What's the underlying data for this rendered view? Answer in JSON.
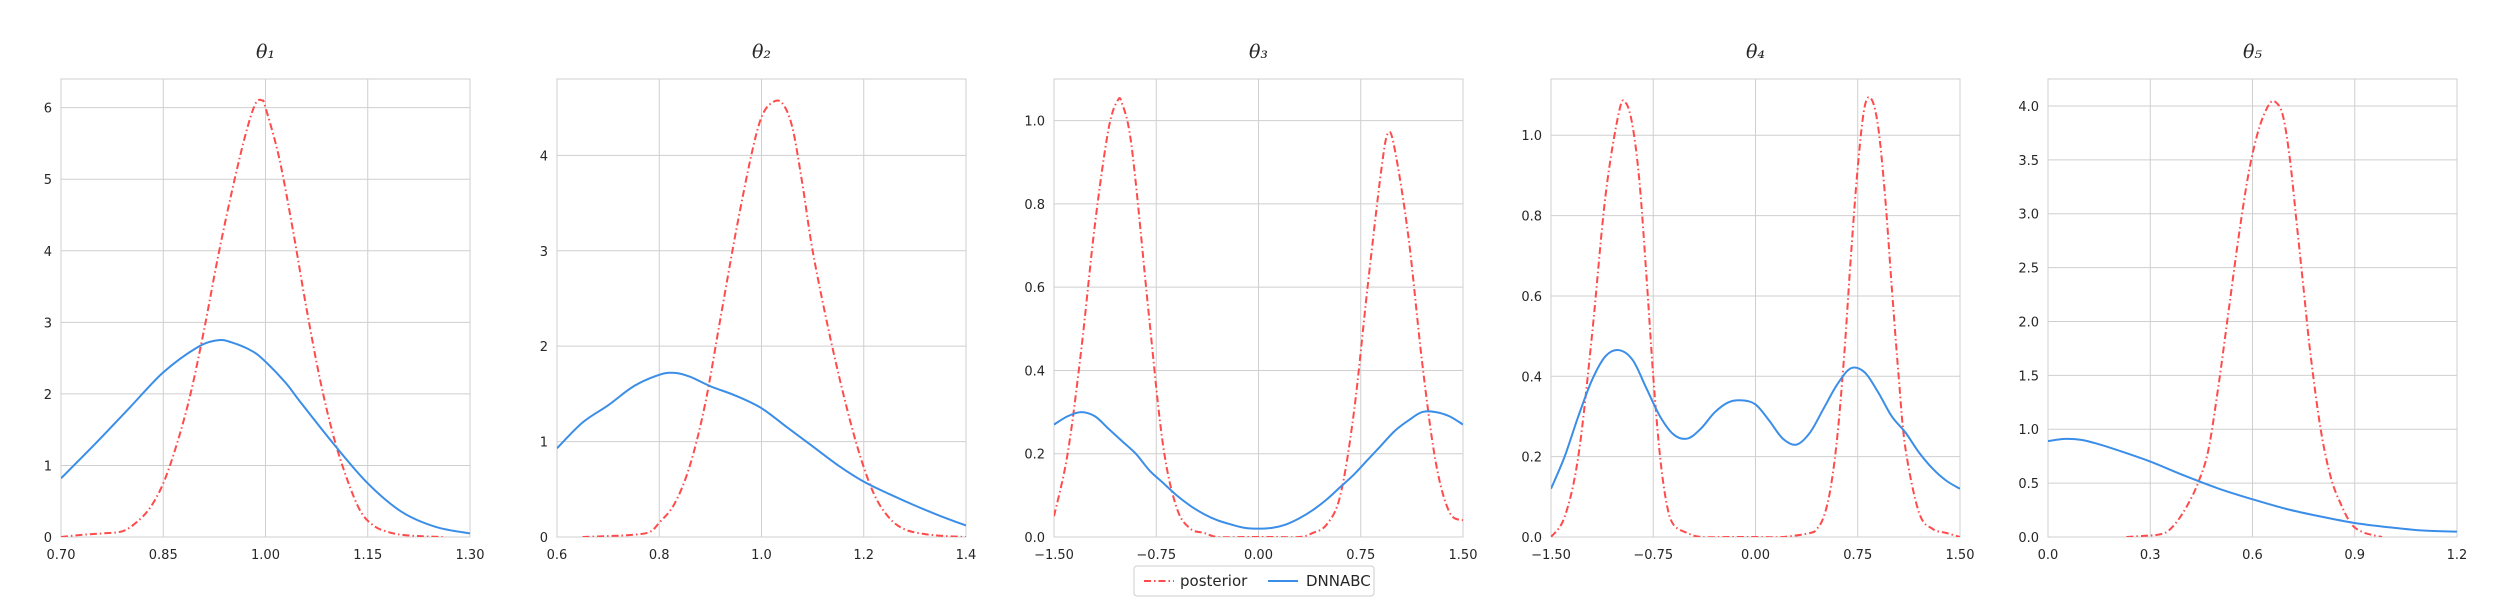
{
  "colors": {
    "posterior": "#ff4b4b",
    "dnnabc": "#3b8ee8",
    "grid": "#cfcfcf",
    "frame": "#cfcfcf",
    "text": "#262626"
  },
  "legend": {
    "placement": "bottom-center",
    "entries": [
      {
        "key": "posterior",
        "label": "posterior",
        "style": "dash-dot"
      },
      {
        "key": "dnnabc",
        "label": "DNNABC",
        "style": "solid"
      }
    ]
  },
  "chart_data": [
    {
      "type": "line",
      "title": "θ₁",
      "xlim": [
        0.7,
        1.3
      ],
      "ylim": [
        0,
        6.4
      ],
      "xticks": [
        0.7,
        0.85,
        1.0,
        1.15,
        1.3
      ],
      "xtick_labels": [
        "0.70",
        "0.85",
        "1.00",
        "1.15",
        "1.30"
      ],
      "yticks": [
        0,
        1,
        2,
        3,
        4,
        5,
        6
      ],
      "ytick_labels": [
        "0",
        "1",
        "2",
        "3",
        "4",
        "5",
        "6"
      ],
      "grid": true,
      "series": [
        {
          "name": "posterior",
          "style": "dash-dot",
          "x": [
            0.7,
            0.73,
            0.76,
            0.79,
            0.81,
            0.83,
            0.85,
            0.87,
            0.89,
            0.91,
            0.93,
            0.95,
            0.97,
            0.985,
            0.995,
            1.0,
            1.02,
            1.04,
            1.06,
            1.08,
            1.1,
            1.12,
            1.14,
            1.16,
            1.18,
            1.2,
            1.23,
            1.26
          ],
          "y": [
            0.0,
            0.03,
            0.05,
            0.08,
            0.2,
            0.4,
            0.75,
            1.3,
            2.0,
            2.9,
            3.9,
            4.8,
            5.6,
            6.05,
            6.1,
            6.0,
            5.3,
            4.3,
            3.2,
            2.2,
            1.4,
            0.8,
            0.35,
            0.15,
            0.07,
            0.03,
            0.01,
            0.0
          ]
        },
        {
          "name": "DNNABC",
          "style": "solid",
          "x": [
            0.7,
            0.75,
            0.8,
            0.85,
            0.9,
            0.93,
            0.95,
            0.98,
            1.0,
            1.03,
            1.05,
            1.1,
            1.15,
            1.2,
            1.25,
            1.3
          ],
          "y": [
            0.82,
            1.3,
            1.8,
            2.3,
            2.65,
            2.75,
            2.72,
            2.6,
            2.45,
            2.15,
            1.9,
            1.3,
            0.75,
            0.35,
            0.14,
            0.05
          ]
        }
      ]
    },
    {
      "type": "line",
      "title": "θ₂",
      "xlim": [
        0.6,
        1.4
      ],
      "ylim": [
        0,
        4.8
      ],
      "xticks": [
        0.6,
        0.8,
        1.0,
        1.2,
        1.4
      ],
      "xtick_labels": [
        "0.6",
        "0.8",
        "1.0",
        "1.2",
        "1.4"
      ],
      "yticks": [
        0,
        1,
        2,
        3,
        4
      ],
      "ytick_labels": [
        "0",
        "1",
        "2",
        "3",
        "4"
      ],
      "grid": true,
      "series": [
        {
          "name": "posterior",
          "style": "dash-dot",
          "x": [
            0.65,
            0.7,
            0.74,
            0.78,
            0.8,
            0.83,
            0.86,
            0.89,
            0.92,
            0.95,
            0.98,
            1.0,
            1.02,
            1.04,
            1.06,
            1.08,
            1.1,
            1.13,
            1.16,
            1.19,
            1.22,
            1.25,
            1.28,
            1.32,
            1.36,
            1.4
          ],
          "y": [
            0.0,
            0.01,
            0.02,
            0.05,
            0.15,
            0.35,
            0.75,
            1.4,
            2.3,
            3.2,
            4.0,
            4.4,
            4.55,
            4.55,
            4.3,
            3.7,
            3.0,
            2.2,
            1.5,
            0.9,
            0.45,
            0.2,
            0.08,
            0.03,
            0.01,
            0.0
          ]
        },
        {
          "name": "DNNABC",
          "style": "solid",
          "x": [
            0.6,
            0.65,
            0.7,
            0.75,
            0.8,
            0.83,
            0.86,
            0.9,
            0.95,
            1.0,
            1.05,
            1.1,
            1.15,
            1.2,
            1.25,
            1.3,
            1.35,
            1.4
          ],
          "y": [
            0.93,
            1.2,
            1.38,
            1.58,
            1.7,
            1.72,
            1.68,
            1.58,
            1.48,
            1.35,
            1.15,
            0.95,
            0.75,
            0.58,
            0.45,
            0.33,
            0.22,
            0.12
          ]
        }
      ]
    },
    {
      "type": "line",
      "title": "θ₃",
      "xlim": [
        -1.5,
        1.5
      ],
      "ylim": [
        0,
        1.1
      ],
      "xticks": [
        -1.5,
        -0.75,
        0.0,
        0.75,
        1.5
      ],
      "xtick_labels": [
        "−1.50",
        "−0.75",
        "0.00",
        "0.75",
        "1.50"
      ],
      "yticks": [
        0,
        0.2,
        0.4,
        0.6,
        0.8,
        1.0
      ],
      "ytick_labels": [
        "0.0",
        "0.2",
        "0.4",
        "0.6",
        "0.8",
        "1.0"
      ],
      "grid": true,
      "series": [
        {
          "name": "posterior",
          "style": "dash-dot",
          "x": [
            -1.5,
            -1.4,
            -1.3,
            -1.2,
            -1.1,
            -1.03,
            -1.0,
            -0.95,
            -0.9,
            -0.8,
            -0.7,
            -0.6,
            -0.5,
            -0.4,
            -0.3,
            -0.1,
            0.1,
            0.3,
            0.4,
            0.5,
            0.6,
            0.7,
            0.8,
            0.9,
            0.95,
            1.0,
            1.1,
            1.2,
            1.3,
            1.4,
            1.5
          ],
          "y": [
            0.05,
            0.2,
            0.45,
            0.75,
            0.98,
            1.05,
            1.04,
            0.98,
            0.85,
            0.52,
            0.22,
            0.07,
            0.02,
            0.01,
            0.0,
            0.0,
            0.0,
            0.0,
            0.01,
            0.03,
            0.1,
            0.3,
            0.6,
            0.88,
            0.97,
            0.93,
            0.72,
            0.42,
            0.18,
            0.06,
            0.04
          ]
        },
        {
          "name": "DNNABC",
          "style": "solid",
          "x": [
            -1.5,
            -1.4,
            -1.3,
            -1.2,
            -1.1,
            -1.0,
            -0.9,
            -0.8,
            -0.7,
            -0.6,
            -0.5,
            -0.4,
            -0.3,
            -0.2,
            -0.1,
            0.0,
            0.1,
            0.2,
            0.3,
            0.4,
            0.5,
            0.6,
            0.7,
            0.8,
            0.9,
            1.0,
            1.1,
            1.2,
            1.3,
            1.4,
            1.5
          ],
          "y": [
            0.27,
            0.29,
            0.3,
            0.29,
            0.26,
            0.23,
            0.2,
            0.16,
            0.13,
            0.1,
            0.075,
            0.055,
            0.04,
            0.03,
            0.022,
            0.02,
            0.022,
            0.03,
            0.045,
            0.065,
            0.09,
            0.12,
            0.15,
            0.185,
            0.22,
            0.255,
            0.28,
            0.3,
            0.3,
            0.29,
            0.27
          ]
        }
      ]
    },
    {
      "type": "line",
      "title": "θ₄",
      "xlim": [
        -1.5,
        1.5
      ],
      "ylim": [
        0,
        1.14
      ],
      "xticks": [
        -1.5,
        -0.75,
        0.0,
        0.75,
        1.5
      ],
      "xtick_labels": [
        "−1.50",
        "−0.75",
        "0.00",
        "0.75",
        "1.50"
      ],
      "yticks": [
        0,
        0.2,
        0.4,
        0.6,
        0.8,
        1.0
      ],
      "ytick_labels": [
        "0.0",
        "0.2",
        "0.4",
        "0.6",
        "0.8",
        "1.0"
      ],
      "grid": true,
      "series": [
        {
          "name": "posterior",
          "style": "dash-dot",
          "x": [
            -1.5,
            -1.4,
            -1.3,
            -1.2,
            -1.1,
            -1.0,
            -0.95,
            -0.9,
            -0.85,
            -0.8,
            -0.75,
            -0.7,
            -0.65,
            -0.6,
            -0.5,
            -0.4,
            -0.2,
            0.0,
            0.2,
            0.4,
            0.45,
            0.5,
            0.55,
            0.6,
            0.65,
            0.7,
            0.75,
            0.8,
            0.85,
            0.9,
            0.95,
            1.0,
            1.05,
            1.1,
            1.2,
            1.3,
            1.4,
            1.5
          ],
          "y": [
            0.0,
            0.05,
            0.2,
            0.5,
            0.85,
            1.06,
            1.08,
            1.02,
            0.88,
            0.65,
            0.4,
            0.2,
            0.08,
            0.03,
            0.01,
            0.0,
            0.0,
            0.0,
            0.0,
            0.01,
            0.02,
            0.05,
            0.12,
            0.25,
            0.45,
            0.7,
            0.92,
            1.07,
            1.09,
            1.02,
            0.85,
            0.62,
            0.4,
            0.22,
            0.06,
            0.02,
            0.01,
            0.0
          ]
        },
        {
          "name": "DNNABC",
          "style": "solid",
          "x": [
            -1.5,
            -1.4,
            -1.3,
            -1.2,
            -1.1,
            -1.0,
            -0.9,
            -0.8,
            -0.7,
            -0.6,
            -0.5,
            -0.4,
            -0.3,
            -0.2,
            -0.1,
            0.0,
            0.1,
            0.2,
            0.3,
            0.4,
            0.5,
            0.6,
            0.7,
            0.8,
            0.9,
            1.0,
            1.1,
            1.2,
            1.3,
            1.4,
            1.5
          ],
          "y": [
            0.12,
            0.2,
            0.3,
            0.39,
            0.45,
            0.465,
            0.44,
            0.37,
            0.3,
            0.255,
            0.245,
            0.27,
            0.31,
            0.335,
            0.34,
            0.33,
            0.29,
            0.245,
            0.23,
            0.26,
            0.32,
            0.38,
            0.42,
            0.41,
            0.36,
            0.3,
            0.26,
            0.21,
            0.17,
            0.14,
            0.12
          ]
        }
      ]
    },
    {
      "type": "line",
      "title": "θ₅",
      "xlim": [
        0.0,
        1.2
      ],
      "ylim": [
        0,
        4.25
      ],
      "xticks": [
        0.0,
        0.3,
        0.6,
        0.9,
        1.2
      ],
      "xtick_labels": [
        "0.0",
        "0.3",
        "0.6",
        "0.9",
        "1.2"
      ],
      "yticks": [
        0,
        0.5,
        1.0,
        1.5,
        2.0,
        2.5,
        3.0,
        3.5,
        4.0
      ],
      "ytick_labels": [
        "0.0",
        "0.5",
        "1.0",
        "1.5",
        "2.0",
        "2.5",
        "3.0",
        "3.5",
        "4.0"
      ],
      "grid": true,
      "series": [
        {
          "name": "posterior",
          "style": "dash-dot",
          "x": [
            0.23,
            0.28,
            0.32,
            0.35,
            0.38,
            0.41,
            0.44,
            0.47,
            0.5,
            0.53,
            0.56,
            0.59,
            0.62,
            0.65,
            0.67,
            0.69,
            0.71,
            0.73,
            0.75,
            0.77,
            0.8,
            0.83,
            0.86,
            0.89,
            0.92,
            0.95,
            0.98
          ],
          "y": [
            0.0,
            0.01,
            0.02,
            0.05,
            0.15,
            0.3,
            0.5,
            0.8,
            1.4,
            2.1,
            2.8,
            3.4,
            3.8,
            4.02,
            4.03,
            3.9,
            3.5,
            2.9,
            2.3,
            1.7,
            1.0,
            0.55,
            0.3,
            0.12,
            0.05,
            0.02,
            0.0
          ]
        },
        {
          "name": "DNNABC",
          "style": "solid",
          "x": [
            0.0,
            0.05,
            0.1,
            0.15,
            0.2,
            0.3,
            0.4,
            0.5,
            0.6,
            0.7,
            0.8,
            0.9,
            1.0,
            1.1,
            1.2
          ],
          "y": [
            0.89,
            0.91,
            0.9,
            0.86,
            0.81,
            0.7,
            0.57,
            0.45,
            0.35,
            0.26,
            0.19,
            0.13,
            0.09,
            0.06,
            0.05
          ]
        }
      ]
    }
  ]
}
